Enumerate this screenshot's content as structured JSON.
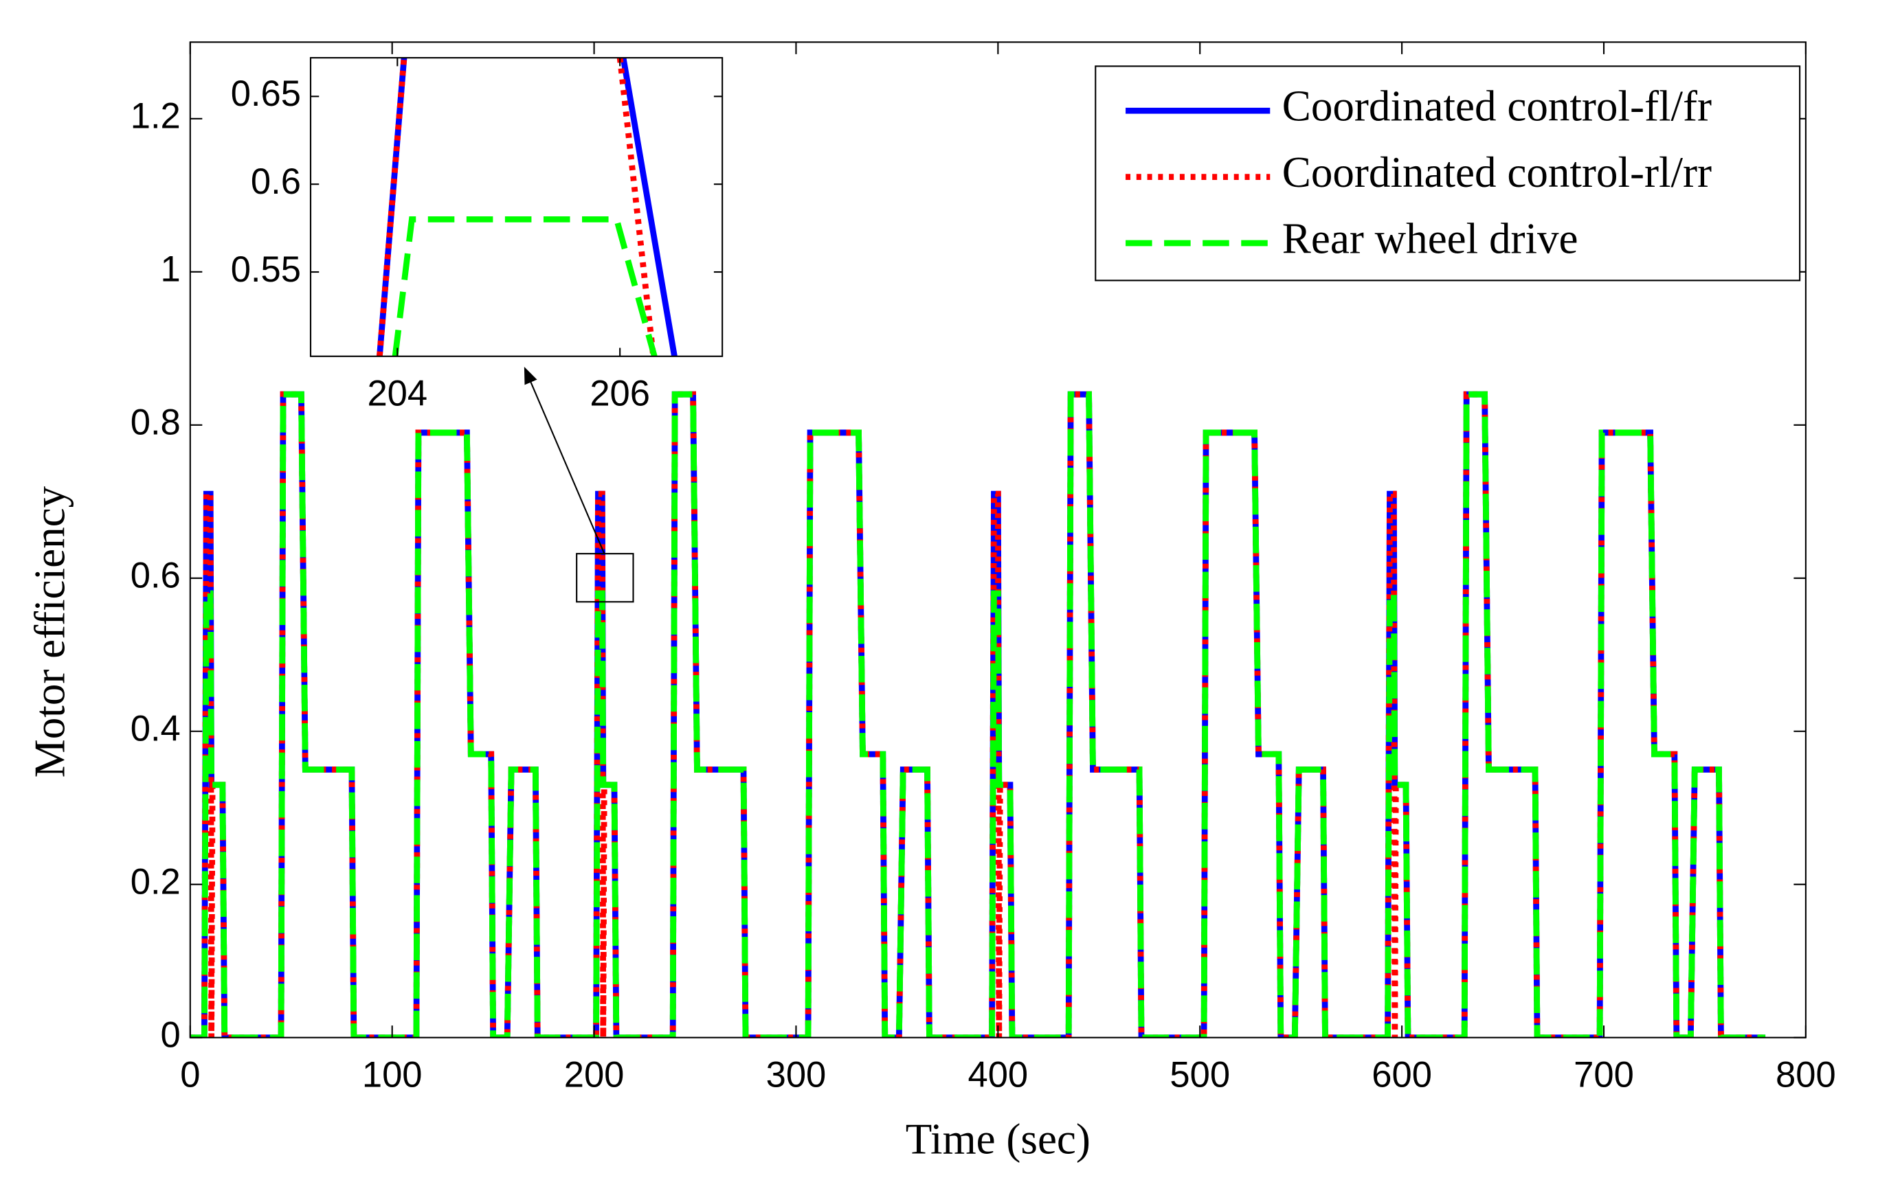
{
  "chart_data": [
    {
      "type": "line",
      "xlabel": "Time (sec)",
      "ylabel": "Motor efficiency",
      "xlim": [
        0,
        800
      ],
      "ylim": [
        0,
        1.3
      ],
      "xticks": [
        0,
        100,
        200,
        300,
        400,
        500,
        600,
        700,
        800
      ],
      "yticks": [
        0,
        0.2,
        0.4,
        0.6,
        0.8,
        1,
        1.2
      ],
      "grid": false,
      "legend": "upper right",
      "x": [
        0,
        7,
        8,
        10,
        10.5,
        11,
        16,
        17,
        45,
        46,
        55,
        57,
        80,
        81,
        112,
        113,
        137,
        139,
        149,
        150,
        157,
        159,
        171,
        172,
        201,
        202,
        204,
        204.5,
        205,
        210,
        211,
        239,
        240,
        249,
        251,
        274,
        275,
        306,
        307,
        331,
        333,
        343,
        344,
        351,
        353,
        365,
        366,
        397,
        398,
        400,
        400.5,
        401,
        406,
        407,
        435,
        436,
        445,
        447,
        470,
        471,
        502,
        503,
        527,
        529,
        539,
        540,
        547,
        549,
        561,
        562,
        593,
        594,
        596,
        596.5,
        597,
        602,
        603,
        631,
        632,
        641,
        643,
        666,
        667,
        698,
        699,
        723,
        725,
        735,
        736,
        743,
        745,
        757,
        758,
        780
      ],
      "series": [
        {
          "name": "Coordinated control-fl/fr",
          "color": "#0000ff",
          "linestyle": "solid",
          "values": [
            0,
            0,
            0.71,
            0.71,
            0.33,
            0.33,
            0.33,
            0,
            0,
            0.84,
            0.84,
            0.35,
            0.35,
            0,
            0,
            0.79,
            0.79,
            0.37,
            0.37,
            0,
            0,
            0.35,
            0.35,
            0,
            0,
            0.71,
            0.71,
            0.33,
            0.33,
            0.33,
            0,
            0,
            0.84,
            0.84,
            0.35,
            0.35,
            0,
            0,
            0.79,
            0.79,
            0.37,
            0.37,
            0,
            0,
            0.35,
            0.35,
            0,
            0,
            0.71,
            0.71,
            0.33,
            0.33,
            0.33,
            0,
            0,
            0.84,
            0.84,
            0.35,
            0.35,
            0,
            0,
            0.79,
            0.79,
            0.37,
            0.37,
            0,
            0,
            0.35,
            0.35,
            0,
            0,
            0.71,
            0.71,
            0.33,
            0.33,
            0.33,
            0,
            0,
            0.84,
            0.84,
            0.35,
            0.35,
            0,
            0,
            0.79,
            0.79,
            0.37,
            0.37,
            0,
            0,
            0.35,
            0.35,
            0,
            0
          ]
        },
        {
          "name": "Coordinated control-rl/rr",
          "color": "#ff0000",
          "linestyle": "dotted",
          "values": [
            0,
            0,
            0.71,
            0.71,
            0,
            0.33,
            0.33,
            0,
            0,
            0.84,
            0.84,
            0.35,
            0.35,
            0,
            0,
            0.79,
            0.79,
            0.37,
            0.37,
            0,
            0,
            0.35,
            0.35,
            0,
            0,
            0.71,
            0.71,
            0,
            0.33,
            0.33,
            0,
            0,
            0.84,
            0.84,
            0.35,
            0.35,
            0,
            0,
            0.79,
            0.79,
            0.37,
            0.37,
            0,
            0,
            0.35,
            0.35,
            0,
            0,
            0.71,
            0.71,
            0,
            0.33,
            0.33,
            0,
            0,
            0.84,
            0.84,
            0.35,
            0.35,
            0,
            0,
            0.79,
            0.79,
            0.37,
            0.37,
            0,
            0,
            0.35,
            0.35,
            0,
            0,
            0.71,
            0.71,
            0,
            0.33,
            0.33,
            0,
            0,
            0.84,
            0.84,
            0.35,
            0.35,
            0,
            0,
            0.79,
            0.79,
            0.37,
            0.37,
            0,
            0,
            0.35,
            0.35,
            0,
            0
          ]
        },
        {
          "name": "Rear wheel drive",
          "color": "#00ff00",
          "linestyle": "dashed",
          "values": [
            0,
            0,
            0.58,
            0.58,
            0.33,
            0.33,
            0.33,
            0,
            0,
            0.84,
            0.84,
            0.35,
            0.35,
            0,
            0,
            0.79,
            0.79,
            0.37,
            0.37,
            0,
            0,
            0.35,
            0.35,
            0,
            0,
            0.58,
            0.58,
            0.33,
            0.33,
            0.33,
            0,
            0,
            0.84,
            0.84,
            0.35,
            0.35,
            0,
            0,
            0.79,
            0.79,
            0.37,
            0.37,
            0,
            0,
            0.35,
            0.35,
            0,
            0,
            0.58,
            0.58,
            0.33,
            0.33,
            0.33,
            0,
            0,
            0.84,
            0.84,
            0.35,
            0.35,
            0,
            0,
            0.79,
            0.79,
            0.37,
            0.37,
            0,
            0,
            0.35,
            0.35,
            0,
            0,
            0.58,
            0.58,
            0.33,
            0.33,
            0.33,
            0,
            0,
            0.84,
            0.84,
            0.35,
            0.35,
            0,
            0,
            0.79,
            0.79,
            0.37,
            0.37,
            0,
            0,
            0.35,
            0.35,
            0,
            0
          ]
        }
      ]
    },
    {
      "type": "line",
      "xlim": [
        203.22,
        206.92
      ],
      "ylim": [
        0.502,
        0.672
      ],
      "xticks": [
        204,
        206
      ],
      "yticks": [
        0.55,
        0.6,
        0.65
      ],
      "grid": false,
      "series": [
        {
          "color": "#0000ff",
          "linestyle": "solid",
          "x": [
            203.84,
            204.06,
            205,
            206.03,
            206.49
          ],
          "values": [
            0.502,
            0.672,
            null,
            0.672,
            0.502
          ]
        },
        {
          "color": "#ff0000",
          "linestyle": "dotted",
          "x": [
            203.84,
            204.06,
            205,
            206.0,
            206.3
          ],
          "values": [
            0.502,
            0.672,
            null,
            0.672,
            0.502
          ]
        },
        {
          "color": "#00ff00",
          "linestyle": "dashed",
          "x": [
            203.98,
            204.13,
            205.97,
            206.31
          ],
          "values": [
            0.502,
            0.58,
            0.58,
            0.502
          ]
        }
      ]
    }
  ]
}
